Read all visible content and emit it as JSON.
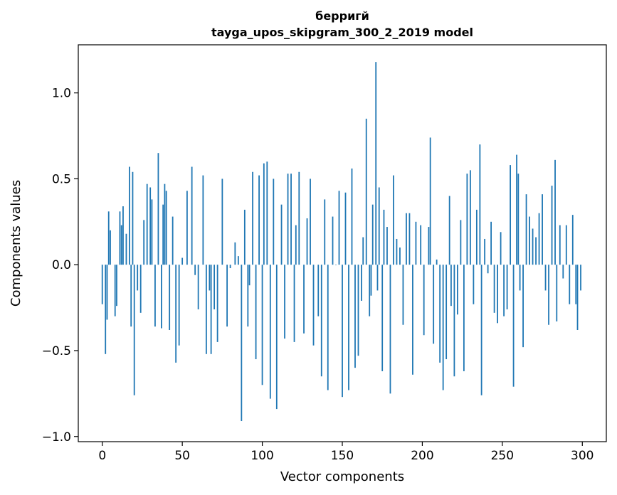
{
  "chart_data": {
    "type": "bar",
    "title": "берригй",
    "subtitle": "tayga_upos_skipgram_300_2_2019 model",
    "xlabel": "Vector components",
    "ylabel": "Components values",
    "xlim": [
      -15,
      315
    ],
    "ylim": [
      -1.03,
      1.28
    ],
    "xticks": [
      0,
      50,
      100,
      150,
      200,
      250,
      300
    ],
    "yticks": [
      -1.0,
      -0.5,
      0.0,
      0.5,
      1.0
    ],
    "ytick_labels": [
      "−1.0",
      "−0.5",
      "0.0",
      "0.5",
      "1.0"
    ],
    "bar_color": "#1f77b4",
    "grid": false,
    "x": [
      0,
      2,
      3,
      4,
      5,
      8,
      9,
      11,
      12,
      13,
      15,
      17,
      18,
      19,
      20,
      22,
      24,
      26,
      28,
      30,
      31,
      33,
      35,
      37,
      38,
      39,
      40,
      42,
      44,
      46,
      48,
      50,
      53,
      56,
      58,
      60,
      63,
      65,
      67,
      68,
      70,
      72,
      75,
      78,
      80,
      83,
      85,
      87,
      89,
      91,
      92,
      94,
      96,
      98,
      100,
      101,
      103,
      105,
      107,
      109,
      112,
      114,
      116,
      118,
      120,
      121,
      123,
      126,
      128,
      130,
      132,
      135,
      137,
      139,
      141,
      144,
      146,
      148,
      150,
      152,
      154,
      156,
      158,
      160,
      162,
      163,
      165,
      167,
      168,
      169,
      171,
      172,
      173,
      175,
      176,
      178,
      180,
      182,
      184,
      186,
      188,
      190,
      192,
      194,
      196,
      199,
      201,
      204,
      205,
      207,
      209,
      211,
      213,
      215,
      217,
      218,
      220,
      222,
      224,
      226,
      228,
      230,
      232,
      234,
      236,
      237,
      239,
      241,
      243,
      245,
      247,
      249,
      251,
      253,
      255,
      257,
      259,
      260,
      261,
      263,
      265,
      267,
      269,
      271,
      273,
      275,
      277,
      279,
      281,
      283,
      284,
      286,
      288,
      290,
      292,
      294,
      296,
      297,
      299
    ],
    "values": [
      -0.23,
      -0.52,
      -0.32,
      0.31,
      0.2,
      -0.3,
      -0.24,
      0.31,
      0.23,
      0.34,
      0.18,
      0.57,
      -0.36,
      0.54,
      -0.76,
      -0.15,
      -0.28,
      0.26,
      0.47,
      0.45,
      0.38,
      -0.36,
      0.65,
      -0.37,
      0.35,
      0.47,
      0.43,
      -0.38,
      0.28,
      -0.57,
      -0.47,
      0.04,
      0.43,
      0.57,
      -0.06,
      -0.26,
      0.52,
      -0.52,
      -0.15,
      -0.52,
      -0.26,
      -0.45,
      0.5,
      -0.36,
      -0.02,
      0.13,
      0.05,
      -0.91,
      0.32,
      -0.36,
      -0.12,
      0.54,
      -0.55,
      0.52,
      -0.7,
      0.59,
      0.6,
      -0.78,
      0.5,
      -0.84,
      0.35,
      -0.43,
      0.53,
      0.53,
      -0.45,
      0.23,
      0.54,
      -0.4,
      0.27,
      0.5,
      -0.47,
      -0.3,
      -0.65,
      0.38,
      -0.73,
      0.28,
      0.0,
      0.43,
      -0.77,
      0.42,
      -0.73,
      0.56,
      -0.6,
      -0.53,
      -0.21,
      0.16,
      0.85,
      -0.3,
      -0.18,
      0.35,
      1.18,
      -0.15,
      0.45,
      -0.62,
      0.32,
      0.22,
      -0.75,
      0.52,
      0.15,
      0.1,
      -0.35,
      0.3,
      0.3,
      -0.64,
      0.25,
      0.23,
      -0.41,
      0.22,
      0.74,
      -0.46,
      0.03,
      -0.57,
      -0.73,
      -0.55,
      0.4,
      -0.24,
      -0.65,
      -0.29,
      0.26,
      -0.62,
      0.53,
      0.55,
      -0.23,
      0.32,
      0.7,
      -0.76,
      0.15,
      -0.05,
      0.25,
      -0.28,
      -0.34,
      0.19,
      -0.3,
      -0.26,
      0.58,
      -0.71,
      0.64,
      0.53,
      -0.15,
      -0.48,
      0.41,
      0.28,
      0.21,
      0.16,
      0.3,
      0.41,
      -0.15,
      -0.35,
      0.46,
      0.61,
      -0.33,
      0.23,
      -0.08,
      0.23,
      -0.23,
      0.29,
      -0.23,
      -0.38,
      -0.15
    ]
  }
}
